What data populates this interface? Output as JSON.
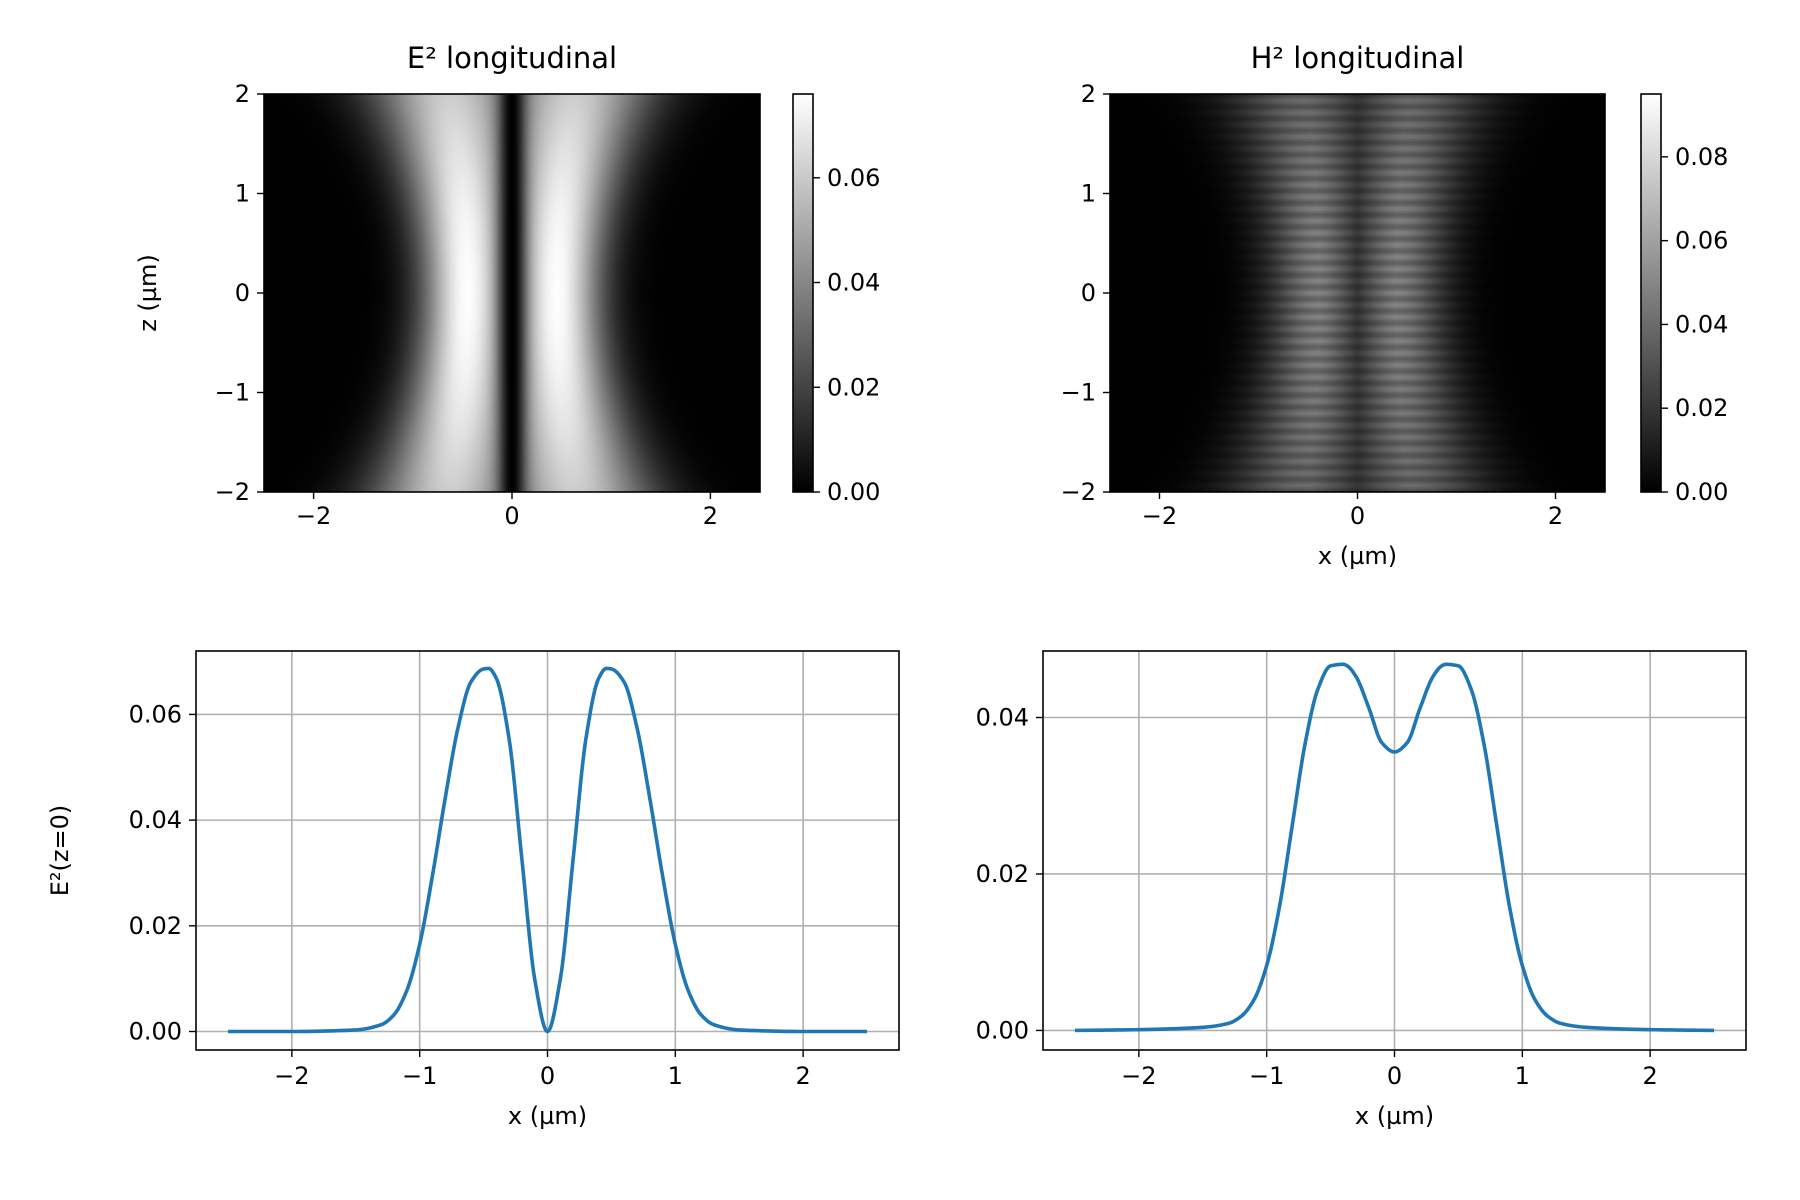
{
  "chart_data": [
    {
      "type": "heatmap",
      "title": "E² longitudinal",
      "xlabel": "",
      "ylabel": "z (µm)",
      "xlim": [
        -2.5,
        2.5
      ],
      "ylim": [
        -2,
        2
      ],
      "x_ticks": [
        -2,
        0,
        2
      ],
      "x_tick_labels": [
        "−2",
        "0",
        "2"
      ],
      "y_ticks": [
        -2,
        -1,
        0,
        1,
        2
      ],
      "y_tick_labels": [
        "−2",
        "−1",
        "0",
        "1",
        "2"
      ],
      "colormap": "gray",
      "colorbar": {
        "range": [
          0,
          0.076
        ],
        "ticks": [
          0,
          0.02,
          0.04,
          0.06
        ],
        "tick_labels": [
          "0.00",
          "0.02",
          "0.04",
          "0.06"
        ]
      },
      "grid": false,
      "field": {
        "profile": "two-lobe",
        "peak": 0.0755,
        "center_lobe_x": 0.45,
        "lobe_width_at_z0": 0.32,
        "spread_with_z": 0.18,
        "center_zero": true
      }
    },
    {
      "type": "heatmap",
      "title": "H² longitudinal",
      "xlabel": "x (µm)",
      "ylabel": "",
      "xlim": [
        -2.5,
        2.5
      ],
      "ylim": [
        -2,
        2
      ],
      "x_ticks": [
        -2,
        0,
        2
      ],
      "x_tick_labels": [
        "−2",
        "0",
        "2"
      ],
      "y_ticks": [
        -2,
        -1,
        0,
        1,
        2
      ],
      "y_tick_labels": [
        "−2",
        "−1",
        "0",
        "1",
        "2"
      ],
      "colormap": "gray",
      "colorbar": {
        "range": [
          0,
          0.095
        ],
        "ticks": [
          0,
          0.02,
          0.04,
          0.06,
          0.08
        ],
        "tick_labels": [
          "0.00",
          "0.02",
          "0.04",
          "0.06",
          "0.08"
        ]
      },
      "grid": false,
      "field": {
        "profile": "broad-two-lobe",
        "peak": 0.05,
        "center_lobe_x": 0.38,
        "lobe_width_at_z0": 0.36,
        "spread_with_z": 0.15,
        "center_fraction": 0.76,
        "striations": true
      }
    },
    {
      "type": "line",
      "title": "",
      "xlabel": "x (µm)",
      "ylabel": "E²(z=0)",
      "xlim": [
        -2.75,
        2.75
      ],
      "ylim": [
        -0.0035,
        0.072
      ],
      "x_ticks": [
        -2,
        -1,
        0,
        1,
        2
      ],
      "x_tick_labels": [
        "−2",
        "−1",
        "0",
        "1",
        "2"
      ],
      "y_ticks": [
        0,
        0.02,
        0.04,
        0.06
      ],
      "y_tick_labels": [
        "0.00",
        "0.02",
        "0.04",
        "0.06"
      ],
      "grid": true,
      "color": "#1f77b4",
      "series": [
        {
          "x": [
            -2.5,
            -2.0,
            -1.5,
            -1.3,
            -1.2,
            -1.1,
            -1.0,
            -0.9,
            -0.8,
            -0.7,
            -0.6,
            -0.5,
            -0.46,
            -0.4,
            -0.3,
            -0.2,
            -0.1,
            0.0,
            0.1,
            0.2,
            0.3,
            0.4,
            0.46,
            0.5,
            0.6,
            0.7,
            0.8,
            0.9,
            1.0,
            1.1,
            1.2,
            1.3,
            1.5,
            2.0,
            2.5
          ],
          "y": [
            0.0,
            0.0,
            0.0003,
            0.0013,
            0.0032,
            0.0078,
            0.0165,
            0.0295,
            0.0442,
            0.0575,
            0.0661,
            0.0686,
            0.0687,
            0.0668,
            0.0553,
            0.0325,
            0.0099,
            0.0,
            0.0099,
            0.0325,
            0.0553,
            0.0668,
            0.0687,
            0.0686,
            0.0661,
            0.0575,
            0.0442,
            0.0295,
            0.0165,
            0.0078,
            0.0032,
            0.0013,
            0.0003,
            0.0,
            0.0
          ]
        }
      ]
    },
    {
      "type": "line",
      "title": "",
      "xlabel": "x (µm)",
      "ylabel": "",
      "xlim": [
        -2.75,
        2.75
      ],
      "ylim": [
        -0.0025,
        0.0485
      ],
      "x_ticks": [
        -2,
        -1,
        0,
        1,
        2
      ],
      "x_tick_labels": [
        "−2",
        "−1",
        "0",
        "1",
        "2"
      ],
      "y_ticks": [
        0,
        0.02,
        0.04
      ],
      "y_tick_labels": [
        "0.00",
        "0.02",
        "0.04"
      ],
      "grid": true,
      "color": "#1f77b4",
      "series": [
        {
          "x": [
            -2.5,
            -2.0,
            -1.5,
            -1.3,
            -1.2,
            -1.1,
            -1.0,
            -0.9,
            -0.8,
            -0.7,
            -0.6,
            -0.5,
            -0.4,
            -0.37,
            -0.3,
            -0.2,
            -0.1,
            0.0,
            0.1,
            0.2,
            0.3,
            0.37,
            0.4,
            0.5,
            0.6,
            0.7,
            0.8,
            0.9,
            1.0,
            1.1,
            1.2,
            1.3,
            1.5,
            2.0,
            2.5
          ],
          "y": [
            0.0,
            0.0001,
            0.0004,
            0.0009,
            0.0018,
            0.0039,
            0.0083,
            0.0158,
            0.0262,
            0.0366,
            0.0436,
            0.0466,
            0.0468,
            0.0466,
            0.0452,
            0.0412,
            0.0368,
            0.0356,
            0.0368,
            0.0412,
            0.0452,
            0.0466,
            0.0468,
            0.0466,
            0.0436,
            0.0366,
            0.0262,
            0.0158,
            0.0083,
            0.0039,
            0.0018,
            0.0009,
            0.0004,
            0.0001,
            0.0
          ]
        }
      ]
    }
  ]
}
